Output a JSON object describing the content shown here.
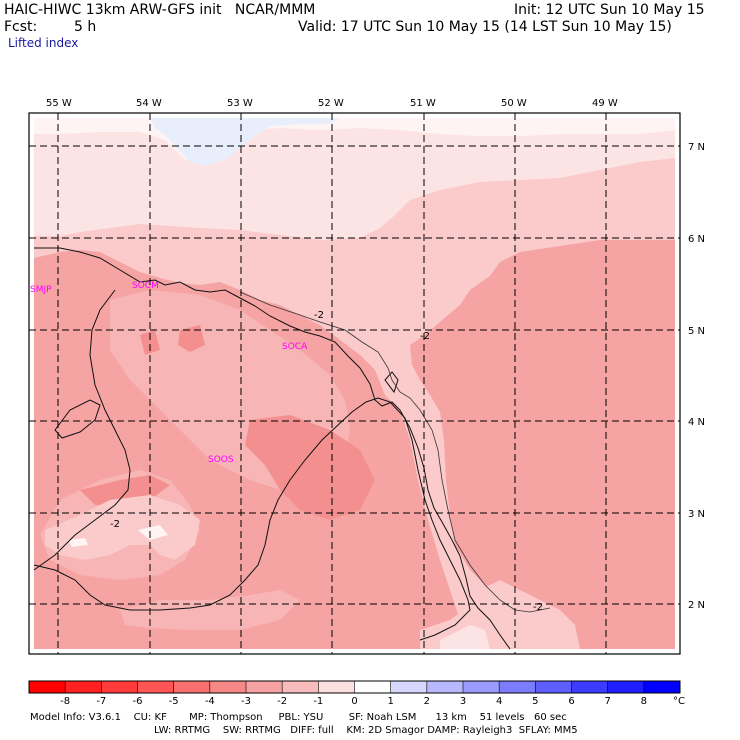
{
  "header": {
    "title": "HAIC-HIWC 13km ARW-GFS init   NCAR/MMM",
    "fcst_label": "Fcst:",
    "fcst_value": "5 h",
    "init": "Init: 12 UTC Sun 10 May 15",
    "valid": "Valid: 17 UTC Sun 10 May 15 (14 LST Sun 10 May 15)",
    "field": "Lifted index"
  },
  "map": {
    "lon_labels": [
      "55 W",
      "54 W",
      "53 W",
      "52 W",
      "51 W",
      "50 W",
      "49 W"
    ],
    "lat_labels": [
      "7 N",
      "6 N",
      "5 N",
      "4 N",
      "3 N",
      "2 N"
    ],
    "stations": [
      "SMJP",
      "SOCM",
      "SOCA",
      "SOOS"
    ],
    "contour_labels": [
      "-2",
      "-2",
      "-2",
      "-2"
    ],
    "colors": {
      "deep": "#f6a3a3",
      "mid": "#f8b5b5",
      "light": "#fbcaca",
      "pale": "#fde4e4",
      "whiteish": "#fff4f4",
      "blue": "#e8eefc",
      "patch_strong": "#f48f8f"
    }
  },
  "colorbar": {
    "labels": [
      "-8",
      "-7",
      "-6",
      "-5",
      "-4",
      "-3",
      "-2",
      "-1",
      "0",
      "1",
      "2",
      "3",
      "4",
      "5",
      "6",
      "7",
      "8"
    ],
    "unit": "°C",
    "colors": [
      "#ff0000",
      "#ff2020",
      "#ff3b3b",
      "#ff5555",
      "#f96e6e",
      "#f78888",
      "#f7a2a2",
      "#f9bcbc",
      "#fde0e0",
      "#ffffff",
      "#d6d6ff",
      "#b8b8ff",
      "#9a9aff",
      "#7c7cff",
      "#5e5eff",
      "#3c3cff",
      "#1e1eff",
      "#0000ff"
    ]
  },
  "model_info": {
    "line1": "Model Info: V3.6.1    CU: KF       MP: Thompson     PBL: YSU        SF: Noah LSM      13 km    51 levels   60 sec",
    "line2": "LW: RRTMG    SW: RRTMG   DIFF: full    KM: 2D Smagor DAMP: Rayleigh3  SFLAY: MM5"
  }
}
